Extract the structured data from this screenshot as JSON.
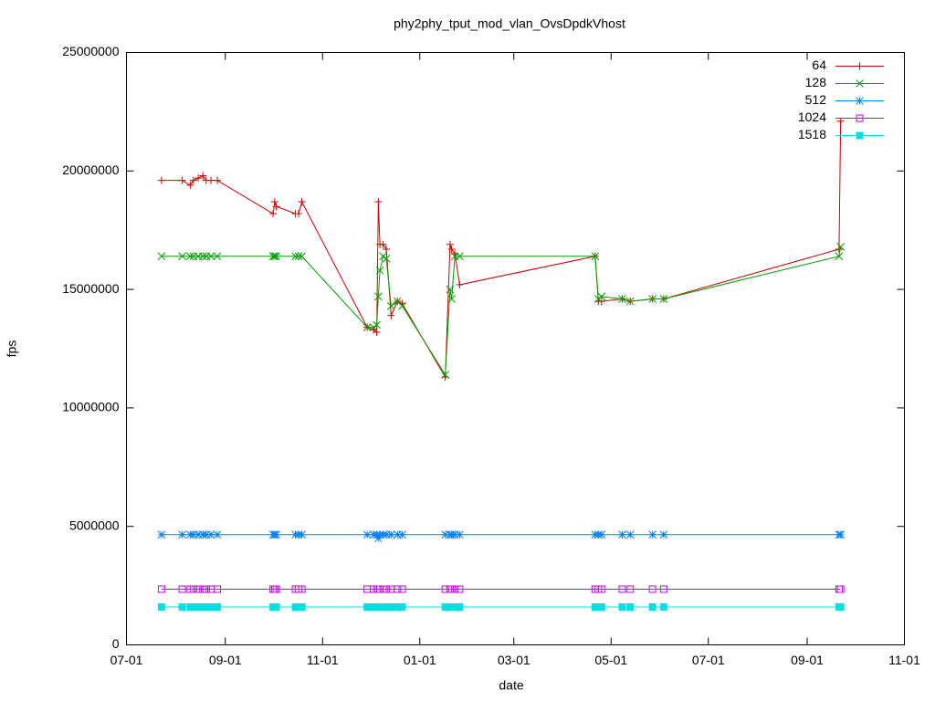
{
  "chart_data": {
    "type": "line",
    "title": "phy2phy_tput_mod_vlan_OvsDpdkVhost",
    "x_label": "date",
    "y_label": "fps",
    "x": [
      "07-23",
      "08-05",
      "08-10",
      "08-12",
      "08-15",
      "08-18",
      "08-20",
      "08-23",
      "08-27",
      "10-01",
      "10-02",
      "10-03",
      "10-15",
      "10-17",
      "10-19",
      "11-29",
      "12-03",
      "12-05",
      "12-06",
      "12-07",
      "12-09",
      "12-11",
      "12-14",
      "12-18",
      "12-21",
      "01-17",
      "01-20",
      "01-21",
      "01-23",
      "01-26",
      "04-21",
      "04-23",
      "04-25",
      "05-08",
      "05-13",
      "05-27",
      "06-03",
      "09-21",
      "09-22"
    ],
    "series": [
      {
        "name": "64",
        "color": "#cc0000",
        "marker": "plus",
        "values": [
          19600000,
          19600000,
          19400000,
          19600000,
          19700000,
          19800000,
          19600000,
          19600000,
          19600000,
          18200000,
          18700000,
          18500000,
          18200000,
          18200000,
          18700000,
          13400000,
          13300000,
          13200000,
          18700000,
          16900000,
          16900000,
          16700000,
          13900000,
          14500000,
          14400000,
          11300000,
          16900000,
          16700000,
          16500000,
          15200000,
          16400000,
          14500000,
          14500000,
          14600000,
          14500000,
          14600000,
          14600000,
          16700000,
          22100000
        ]
      },
      {
        "name": "128",
        "color": "#00a000",
        "marker": "cross",
        "values": [
          16400000,
          16400000,
          16400000,
          16400000,
          16400000,
          16400000,
          16400000,
          16400000,
          16400000,
          16400000,
          16400000,
          16400000,
          16400000,
          16400000,
          16400000,
          13400000,
          13400000,
          13500000,
          14700000,
          15800000,
          16400000,
          16300000,
          14300000,
          14500000,
          14300000,
          11400000,
          15000000,
          14600000,
          16400000,
          16400000,
          16400000,
          14600000,
          14700000,
          14600000,
          14500000,
          14600000,
          14600000,
          16400000,
          16800000
        ]
      },
      {
        "name": "512",
        "color": "#0080ff",
        "marker": "star",
        "values": [
          4650000,
          4650000,
          4650000,
          4650000,
          4650000,
          4650000,
          4650000,
          4650000,
          4650000,
          4650000,
          4650000,
          4650000,
          4650000,
          4650000,
          4650000,
          4650000,
          4650000,
          4650000,
          4500000,
          4650000,
          4650000,
          4650000,
          4650000,
          4650000,
          4650000,
          4650000,
          4650000,
          4650000,
          4650000,
          4650000,
          4650000,
          4650000,
          4650000,
          4650000,
          4650000,
          4650000,
          4650000,
          4650000,
          4650000
        ]
      },
      {
        "name": "1024",
        "color": "#c000ff",
        "marker": "box",
        "values": [
          2350000,
          2350000,
          2350000,
          2350000,
          2350000,
          2350000,
          2350000,
          2350000,
          2350000,
          2350000,
          2350000,
          2350000,
          2350000,
          2350000,
          2350000,
          2350000,
          2350000,
          2350000,
          2350000,
          2350000,
          2350000,
          2350000,
          2350000,
          2350000,
          2350000,
          2350000,
          2350000,
          2350000,
          2350000,
          2350000,
          2350000,
          2350000,
          2350000,
          2350000,
          2350000,
          2350000,
          2350000,
          2350000,
          2350000
        ]
      },
      {
        "name": "1518",
        "color": "#00e0e0",
        "marker": "filledbox",
        "values": [
          1600000,
          1600000,
          1600000,
          1600000,
          1600000,
          1600000,
          1600000,
          1600000,
          1600000,
          1600000,
          1600000,
          1600000,
          1600000,
          1600000,
          1600000,
          1600000,
          1600000,
          1600000,
          1600000,
          1600000,
          1600000,
          1600000,
          1600000,
          1600000,
          1600000,
          1600000,
          1600000,
          1600000,
          1600000,
          1600000,
          1600000,
          1600000,
          1600000,
          1600000,
          1600000,
          1600000,
          1600000,
          1600000,
          1600000
        ]
      }
    ],
    "xlim": [
      "07-01",
      "11-01"
    ],
    "xticks": [
      "07-01",
      "09-01",
      "11-01",
      "01-01",
      "03-01",
      "05-01",
      "07-01",
      "09-01",
      "11-01"
    ],
    "ylim": [
      0,
      25000000
    ],
    "yticks": [
      0,
      5000000,
      10000000,
      15000000,
      20000000,
      25000000
    ],
    "grid": false,
    "legend": "top-right"
  }
}
